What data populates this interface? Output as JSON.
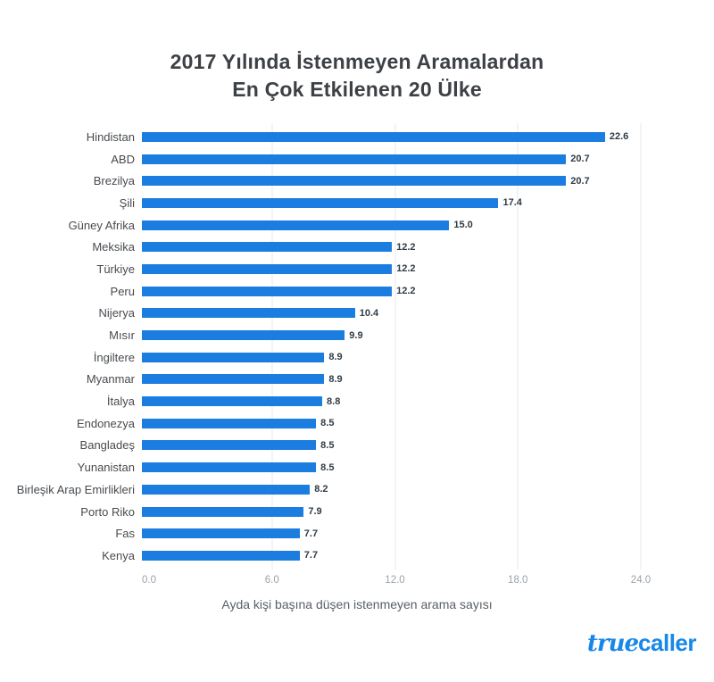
{
  "title": {
    "line1": "2017 Yılında İstenmeyen Aramalardan",
    "line2": "En Çok Etkilenen 20 Ülke"
  },
  "chart_data": {
    "type": "bar",
    "orientation": "horizontal",
    "categories": [
      "Hindistan",
      "ABD",
      "Brezilya",
      "Şili",
      "Güney Afrika",
      "Meksika",
      "Türkiye",
      "Peru",
      "Nijerya",
      "Mısır",
      "İngiltere",
      "Myanmar",
      "İtalya",
      "Endonezya",
      "Bangladeş",
      "Yunanistan",
      "Birleşik Arap Emirlikleri",
      "Porto Riko",
      "Fas",
      "Kenya"
    ],
    "values": [
      22.6,
      20.7,
      20.7,
      17.4,
      15.0,
      12.2,
      12.2,
      12.2,
      10.4,
      9.9,
      8.9,
      8.9,
      8.8,
      8.5,
      8.5,
      8.5,
      8.2,
      7.9,
      7.7,
      7.7
    ],
    "title": "2017 Yılında İstenmeyen Aramalardan En Çok Etkilenen 20 Ülke",
    "xlabel": "Ayda kişi başına düşen istenmeyen arama sayısı",
    "ylabel": "",
    "x_ticks": [
      "0.0",
      "6.0",
      "12.0",
      "18.0",
      "24.0"
    ],
    "xlim": [
      0,
      24
    ],
    "grid": "vertical-only",
    "legend": "none",
    "bar_color": "#1b7de0",
    "gridline_color": "#e9eaee"
  },
  "footer": {
    "logo_true": "true",
    "logo_caller": "caller",
    "logo_color": "#1787e8"
  }
}
